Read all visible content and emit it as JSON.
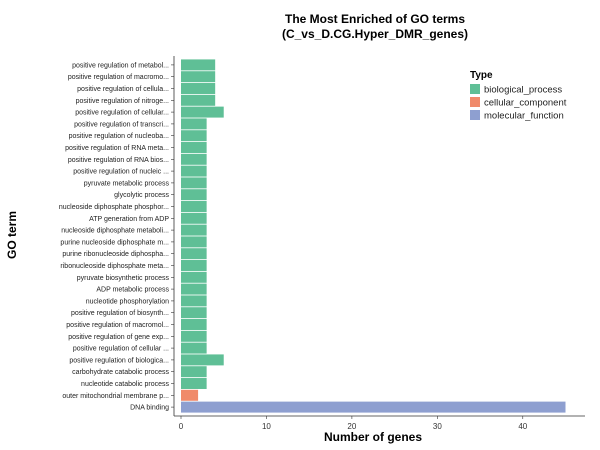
{
  "chart_data": {
    "type": "bar",
    "orientation": "horizontal",
    "title_line1": "The Most Enriched of GO terms",
    "title_line2": "(C_vs_D.CG.Hyper_DMR_genes)",
    "xlabel": "Number of genes",
    "ylabel": "GO term",
    "xlim": [
      0,
      46
    ],
    "xticks": [
      0,
      10,
      20,
      30,
      40
    ],
    "grid": false,
    "legend": {
      "title": "Type",
      "position": "top-right",
      "entries": [
        {
          "name": "biological_process",
          "color": "#5fbf96"
        },
        {
          "name": "cellular_component",
          "color": "#f08a6a"
        },
        {
          "name": "molecular_function",
          "color": "#8e9fd0"
        }
      ]
    },
    "categories": [
      "positive regulation of metabol...",
      "positive regulation of macromo...",
      "positive regulation of cellula...",
      "positive regulation of nitroge...",
      "positive regulation of cellular...",
      "positive regulation of transcri...",
      "positive regulation of nucleoba...",
      "positive regulation of RNA meta...",
      "positive regulation of RNA bios...",
      "positive regulation of nucleic ...",
      "pyruvate metabolic process",
      "glycolytic process",
      "nucleoside diphosphate phosphor...",
      "ATP generation from ADP",
      "nucleoside diphosphate metaboli...",
      "purine nucleoside diphosphate m...",
      "purine ribonucleoside diphospha...",
      "ribonucleoside diphosphate meta...",
      "pyruvate biosynthetic process",
      "ADP metabolic process",
      "nucleotide phosphorylation",
      "positive regulation of biosynth...",
      "positive regulation of macromol...",
      "positive regulation of gene exp...",
      "positive regulation of cellular ...",
      "positive regulation of biologica...",
      "carbohydrate catabolic process",
      "nucleotide catabolic process",
      "outer mitochondrial membrane p...",
      "DNA binding"
    ],
    "values": [
      4,
      4,
      4,
      4,
      5,
      3,
      3,
      3,
      3,
      3,
      3,
      3,
      3,
      3,
      3,
      3,
      3,
      3,
      3,
      3,
      3,
      3,
      3,
      3,
      3,
      5,
      3,
      3,
      2,
      45
    ],
    "types": [
      "biological_process",
      "biological_process",
      "biological_process",
      "biological_process",
      "biological_process",
      "biological_process",
      "biological_process",
      "biological_process",
      "biological_process",
      "biological_process",
      "biological_process",
      "biological_process",
      "biological_process",
      "biological_process",
      "biological_process",
      "biological_process",
      "biological_process",
      "biological_process",
      "biological_process",
      "biological_process",
      "biological_process",
      "biological_process",
      "biological_process",
      "biological_process",
      "biological_process",
      "biological_process",
      "biological_process",
      "biological_process",
      "cellular_component",
      "molecular_function"
    ]
  }
}
